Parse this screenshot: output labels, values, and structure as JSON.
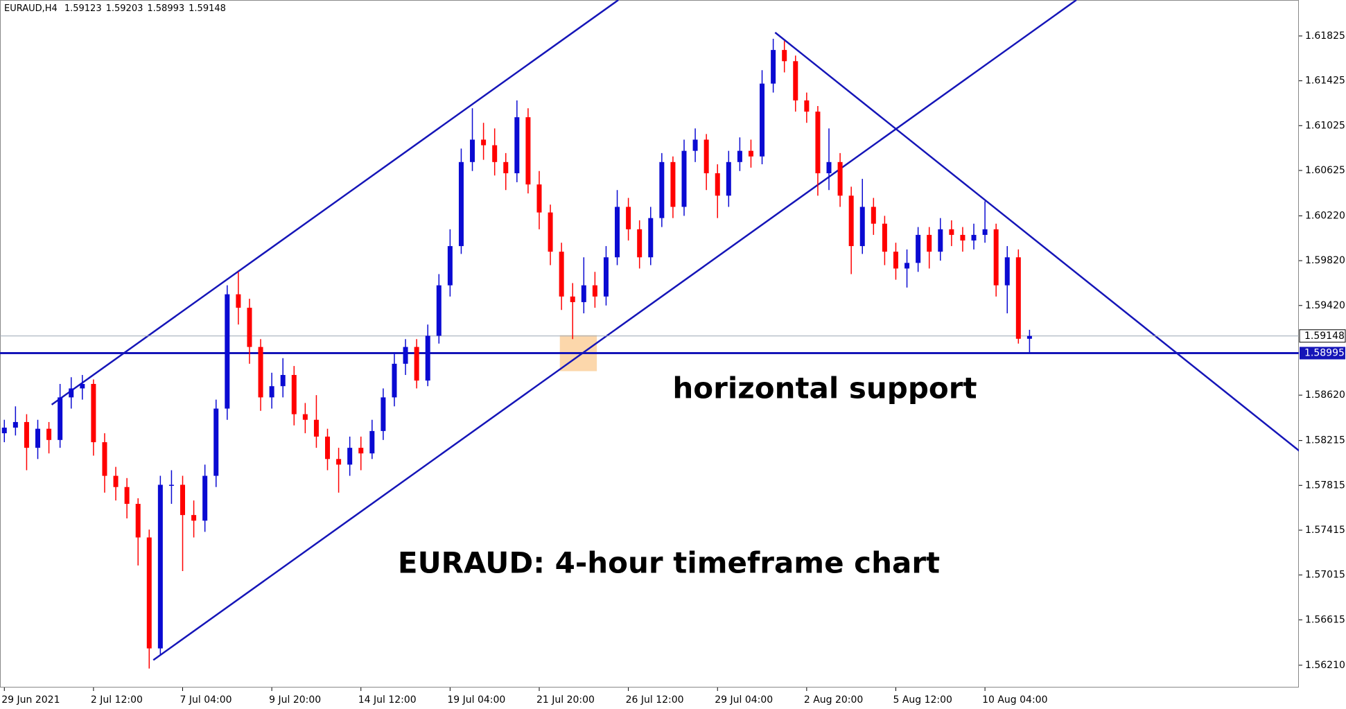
{
  "chart_data": {
    "type": "candlestick",
    "symbol": "EURAUD,H4",
    "up_color": "#0a0ad2",
    "down_color": "#ff0000",
    "line_color": "#1515b8",
    "highlight_color": "#fbc98f",
    "xlim": [
      -0.39,
      116.17
    ],
    "ylim": [
      1.56011,
      1.62146
    ],
    "yticks": [
      1.61825,
      1.61425,
      1.61025,
      1.60625,
      {
        "value": 1.6022,
        "label": "1.60220"
      },
      {
        "value": 1.5982,
        "label": "1.59820"
      },
      {
        "value": 1.5942,
        "label": "1.59420"
      },
      {
        "value": 1.5862,
        "label": "1.58620"
      },
      1.58215,
      1.57815,
      1.57415,
      1.57015,
      1.56615,
      {
        "value": 1.5621,
        "label": "1.56210"
      }
    ],
    "xticks": [
      {
        "value": 0,
        "label": "29 Jun 2021"
      },
      {
        "value": 8,
        "label": "2 Jul 12:00"
      },
      {
        "value": 16,
        "label": "7 Jul 04:00"
      },
      {
        "value": 24,
        "label": "9 Jul 20:00"
      },
      {
        "value": 32,
        "label": "14 Jul 12:00"
      },
      {
        "value": 40,
        "label": "19 Jul 04:00"
      },
      {
        "value": 48,
        "label": "21 Jul 20:00"
      },
      {
        "value": 56,
        "label": "26 Jul 12:00"
      },
      {
        "value": 64,
        "label": "29 Jul 04:00"
      },
      {
        "value": 72,
        "label": "2 Aug 20:00"
      },
      {
        "value": 80,
        "label": "5 Aug 12:00"
      },
      {
        "value": 88,
        "label": "10 Aug 04:00"
      }
    ],
    "open": [
      1.5828,
      1.5833,
      1.5838,
      1.5815,
      1.5832,
      1.5822,
      1.586,
      1.5868,
      1.5872,
      1.582,
      1.579,
      1.578,
      1.5765,
      1.5735,
      1.5636,
      1.5782,
      1.5782,
      1.5755,
      1.575,
      1.579,
      1.585,
      1.5952,
      1.594,
      1.5905,
      1.586,
      1.587,
      1.588,
      1.5845,
      1.584,
      1.5825,
      1.5805,
      1.58,
      1.5815,
      1.581,
      1.583,
      1.586,
      1.589,
      1.5905,
      1.5875,
      1.5915,
      1.596,
      1.5995,
      1.607,
      1.609,
      1.6085,
      1.607,
      1.606,
      1.611,
      1.605,
      1.6025,
      1.599,
      1.595,
      1.5945,
      1.596,
      1.595,
      1.5985,
      1.603,
      1.601,
      1.5985,
      1.602,
      1.607,
      1.603,
      1.608,
      1.609,
      1.606,
      1.604,
      1.607,
      1.608,
      1.6075,
      1.614,
      1.617,
      1.616,
      1.6125,
      1.6115,
      1.606,
      1.607,
      1.604,
      1.5995,
      1.603,
      1.6015,
      1.599,
      1.5975,
      1.598,
      1.6005,
      1.599,
      1.601,
      1.6005,
      1.6,
      1.6005,
      1.601,
      1.596,
      1.5985,
      1.59123
    ],
    "high": [
      1.584,
      1.5852,
      1.5845,
      1.584,
      1.5838,
      1.5872,
      1.5878,
      1.588,
      1.5876,
      1.5828,
      1.5798,
      1.5788,
      1.577,
      1.5742,
      1.579,
      1.5795,
      1.579,
      1.5768,
      1.58,
      1.5858,
      1.596,
      1.5972,
      1.5948,
      1.5912,
      1.5882,
      1.5895,
      1.5888,
      1.5855,
      1.5862,
      1.5832,
      1.5815,
      1.5825,
      1.5825,
      1.584,
      1.5868,
      1.59,
      1.5912,
      1.5912,
      1.5925,
      1.597,
      1.601,
      1.6082,
      1.6118,
      1.6105,
      1.61,
      1.6078,
      1.6125,
      1.6118,
      1.6062,
      1.6032,
      1.5998,
      1.5962,
      1.5985,
      1.5972,
      1.5995,
      1.6045,
      1.6038,
      1.6018,
      1.603,
      1.6078,
      1.6075,
      1.609,
      1.61,
      1.6095,
      1.6068,
      1.608,
      1.6092,
      1.609,
      1.6152,
      1.618,
      1.6178,
      1.6165,
      1.6132,
      1.612,
      1.61,
      1.6078,
      1.6048,
      1.6055,
      1.6038,
      1.6022,
      1.5998,
      1.5992,
      1.6012,
      1.6012,
      1.602,
      1.6018,
      1.6012,
      1.6015,
      1.6035,
      1.6015,
      1.5995,
      1.5992,
      1.59203
    ],
    "low": [
      1.582,
      1.5826,
      1.5795,
      1.5805,
      1.581,
      1.5815,
      1.585,
      1.5858,
      1.5808,
      1.5775,
      1.5768,
      1.5752,
      1.571,
      1.5618,
      1.563,
      1.5765,
      1.5705,
      1.5735,
      1.574,
      1.578,
      1.584,
      1.5925,
      1.589,
      1.5848,
      1.585,
      1.586,
      1.5835,
      1.5828,
      1.5815,
      1.5795,
      1.5775,
      1.579,
      1.5795,
      1.5805,
      1.5822,
      1.5852,
      1.588,
      1.5868,
      1.587,
      1.5908,
      1.595,
      1.5988,
      1.6062,
      1.6072,
      1.6058,
      1.6045,
      1.6052,
      1.6042,
      1.601,
      1.5978,
      1.5938,
      1.5912,
      1.5935,
      1.594,
      1.5942,
      1.5978,
      1.6,
      1.5975,
      1.5978,
      1.6012,
      1.602,
      1.6022,
      1.607,
      1.6045,
      1.602,
      1.603,
      1.6062,
      1.6065,
      1.6068,
      1.6132,
      1.615,
      1.6115,
      1.6105,
      1.604,
      1.6045,
      1.603,
      1.597,
      1.5988,
      1.6005,
      1.5978,
      1.5965,
      1.5958,
      1.5972,
      1.5975,
      1.5982,
      1.5995,
      1.599,
      1.5992,
      1.5998,
      1.595,
      1.5935,
      1.5908,
      1.58993
    ],
    "close": [
      1.5833,
      1.5838,
      1.5815,
      1.5832,
      1.5822,
      1.586,
      1.5868,
      1.5872,
      1.582,
      1.579,
      1.578,
      1.5765,
      1.5735,
      1.5636,
      1.5782,
      1.5782,
      1.5755,
      1.575,
      1.579,
      1.585,
      1.5952,
      1.594,
      1.5905,
      1.586,
      1.587,
      1.588,
      1.5845,
      1.584,
      1.5825,
      1.5805,
      1.58,
      1.5815,
      1.581,
      1.583,
      1.586,
      1.589,
      1.5905,
      1.5875,
      1.5915,
      1.596,
      1.5995,
      1.607,
      1.609,
      1.6085,
      1.607,
      1.606,
      1.611,
      1.605,
      1.6025,
      1.599,
      1.595,
      1.5945,
      1.596,
      1.595,
      1.5985,
      1.603,
      1.601,
      1.5985,
      1.602,
      1.607,
      1.603,
      1.608,
      1.609,
      1.606,
      1.604,
      1.607,
      1.608,
      1.6075,
      1.614,
      1.617,
      1.616,
      1.6125,
      1.6115,
      1.606,
      1.607,
      1.604,
      1.5995,
      1.603,
      1.6015,
      1.599,
      1.5975,
      1.598,
      1.6005,
      1.599,
      1.601,
      1.6005,
      1.6,
      1.6005,
      1.601,
      1.596,
      1.5985,
      1.59123,
      1.59148
    ],
    "support_level": 1.58995,
    "trend_lines": [
      {
        "x": [
          4.25,
          55.1
        ],
        "y": [
          1.58535,
          1.62146
        ]
      },
      {
        "x": [
          13.37,
          96.2
        ],
        "y": [
          1.56256,
          1.62146
        ]
      },
      {
        "x": [
          69.17,
          116.3
        ],
        "y": [
          1.61856,
          1.58115
        ]
      }
    ],
    "highlight": {
      "x": [
        49.85,
        53.17
      ],
      "y": [
        1.58834,
        1.59155
      ]
    },
    "annotations": [
      "horizontal support",
      "EURAUD: 4-hour timeframe chart"
    ]
  }
}
